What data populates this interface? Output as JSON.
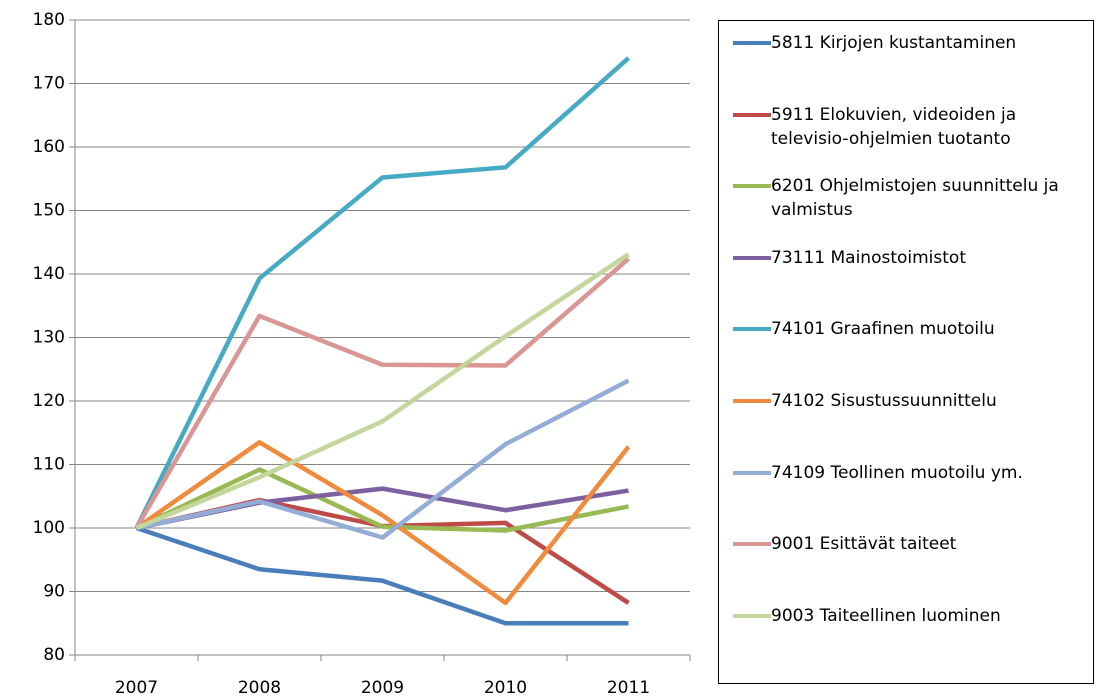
{
  "chart_data": {
    "type": "line",
    "categories": [
      "2007",
      "2008",
      "2009",
      "2010",
      "2011"
    ],
    "ylim": [
      80,
      180
    ],
    "yticks": [
      80,
      90,
      100,
      110,
      120,
      130,
      140,
      150,
      160,
      170,
      180
    ],
    "grid": true,
    "series": [
      {
        "name": "5811 Kirjojen kustantaminen",
        "color": "#4a7ebb",
        "values": [
          100,
          93.5,
          91.7,
          85,
          85
        ]
      },
      {
        "name": "5911 Elokuvien, videoiden ja televisio-ohjelmien tuotanto",
        "color": "#be4b48",
        "values": [
          100,
          104.4,
          100.3,
          100.8,
          88.2
        ]
      },
      {
        "name": "6201 Ohjelmistojen suunnittelu ja valmistus",
        "color": "#98b954",
        "values": [
          100,
          109.2,
          100.2,
          99.6,
          103.4
        ]
      },
      {
        "name": "73111 Mainostoimistot",
        "color": "#7d60a0",
        "values": [
          100,
          104,
          106.2,
          102.8,
          105.9
        ]
      },
      {
        "name": "74101 Graafinen muotoilu",
        "color": "#46aac5",
        "values": [
          100,
          139.3,
          155.2,
          156.8,
          174
        ]
      },
      {
        "name": "74102 Sisustussuunnittelu",
        "color": "#f08a3c",
        "values": [
          100,
          113.5,
          102,
          88.2,
          112.8
        ]
      },
      {
        "name": "74109 Teollinen muotoilu ym.",
        "color": "#93add6",
        "values": [
          100,
          104.2,
          98.5,
          113.2,
          123.2
        ]
      },
      {
        "name": "9001 Esittävät taiteet",
        "color": "#d99694",
        "values": [
          100,
          133.4,
          125.7,
          125.6,
          142.4
        ]
      },
      {
        "name": "9003 Taiteellinen luominen",
        "color": "#c3d69b",
        "values": [
          100,
          108,
          116.8,
          130.2,
          143.1
        ]
      }
    ]
  }
}
